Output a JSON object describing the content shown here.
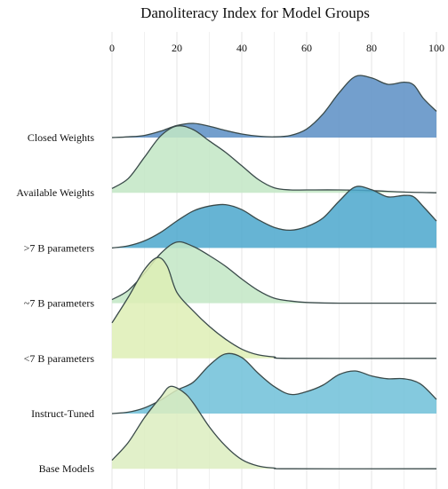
{
  "chart_data": {
    "type": "area",
    "subtype": "ridgeline-density",
    "title": "Danoliteracy Index for Model Groups",
    "xlim": [
      0,
      100
    ],
    "x_ticks": [
      0,
      20,
      40,
      60,
      80,
      100
    ],
    "x_axis_position": "top",
    "grid": true,
    "legend": "none",
    "rows": [
      {
        "label": "Closed Weights",
        "color": "#5b8ec4",
        "density": [
          [
            0,
            0.0
          ],
          [
            5,
            0.01
          ],
          [
            10,
            0.03
          ],
          [
            15,
            0.09
          ],
          [
            20,
            0.17
          ],
          [
            25,
            0.2
          ],
          [
            30,
            0.16
          ],
          [
            35,
            0.1
          ],
          [
            40,
            0.05
          ],
          [
            45,
            0.02
          ],
          [
            50,
            0.01
          ],
          [
            55,
            0.03
          ],
          [
            60,
            0.12
          ],
          [
            65,
            0.33
          ],
          [
            70,
            0.63
          ],
          [
            75,
            0.86
          ],
          [
            80,
            0.84
          ],
          [
            85,
            0.75
          ],
          [
            90,
            0.78
          ],
          [
            93,
            0.74
          ],
          [
            96,
            0.55
          ],
          [
            100,
            0.37
          ]
        ]
      },
      {
        "label": "Available Weights",
        "color": "#c2e6c4",
        "density": [
          [
            0,
            0.06
          ],
          [
            5,
            0.2
          ],
          [
            10,
            0.5
          ],
          [
            15,
            0.8
          ],
          [
            20,
            0.94
          ],
          [
            25,
            0.89
          ],
          [
            30,
            0.73
          ],
          [
            35,
            0.57
          ],
          [
            40,
            0.38
          ],
          [
            45,
            0.19
          ],
          [
            50,
            0.07
          ],
          [
            55,
            0.04
          ],
          [
            60,
            0.04
          ],
          [
            70,
            0.04
          ],
          [
            80,
            0.03
          ],
          [
            90,
            0.01
          ],
          [
            100,
            0.0
          ]
        ]
      },
      {
        "label": ">7 B parameters",
        "color": "#4ba7cd",
        "density": [
          [
            0,
            0.0
          ],
          [
            5,
            0.03
          ],
          [
            10,
            0.1
          ],
          [
            15,
            0.22
          ],
          [
            20,
            0.38
          ],
          [
            25,
            0.52
          ],
          [
            30,
            0.59
          ],
          [
            35,
            0.61
          ],
          [
            40,
            0.54
          ],
          [
            45,
            0.4
          ],
          [
            50,
            0.29
          ],
          [
            55,
            0.25
          ],
          [
            60,
            0.3
          ],
          [
            65,
            0.42
          ],
          [
            70,
            0.66
          ],
          [
            75,
            0.86
          ],
          [
            80,
            0.82
          ],
          [
            85,
            0.72
          ],
          [
            90,
            0.74
          ],
          [
            93,
            0.72
          ],
          [
            96,
            0.58
          ],
          [
            100,
            0.38
          ]
        ]
      },
      {
        "label": "~7 B parameters",
        "color": "#c2e6c4",
        "density": [
          [
            0,
            0.05
          ],
          [
            5,
            0.18
          ],
          [
            10,
            0.42
          ],
          [
            15,
            0.7
          ],
          [
            20,
            0.86
          ],
          [
            25,
            0.8
          ],
          [
            30,
            0.67
          ],
          [
            35,
            0.52
          ],
          [
            40,
            0.34
          ],
          [
            45,
            0.18
          ],
          [
            50,
            0.07
          ],
          [
            55,
            0.03
          ],
          [
            60,
            0.01
          ],
          [
            70,
            0.0
          ],
          [
            80,
            0.0
          ],
          [
            100,
            0.0
          ]
        ]
      },
      {
        "label": "<7 B parameters",
        "color": "#deefb5",
        "density": [
          [
            0,
            0.5
          ],
          [
            5,
            0.86
          ],
          [
            10,
            1.25
          ],
          [
            14,
            1.42
          ],
          [
            17,
            1.3
          ],
          [
            20,
            0.93
          ],
          [
            25,
            0.67
          ],
          [
            30,
            0.45
          ],
          [
            35,
            0.27
          ],
          [
            40,
            0.13
          ],
          [
            45,
            0.05
          ],
          [
            50,
            0.02
          ],
          [
            55,
            0.0
          ],
          [
            100,
            0.0
          ]
        ]
      },
      {
        "label": "Instruct-Tuned",
        "color": "#6fc0d8",
        "density": [
          [
            0,
            0.0
          ],
          [
            5,
            0.02
          ],
          [
            10,
            0.08
          ],
          [
            15,
            0.19
          ],
          [
            20,
            0.33
          ],
          [
            25,
            0.44
          ],
          [
            30,
            0.68
          ],
          [
            35,
            0.84
          ],
          [
            40,
            0.79
          ],
          [
            45,
            0.57
          ],
          [
            50,
            0.38
          ],
          [
            55,
            0.27
          ],
          [
            60,
            0.31
          ],
          [
            65,
            0.4
          ],
          [
            70,
            0.55
          ],
          [
            75,
            0.6
          ],
          [
            80,
            0.53
          ],
          [
            85,
            0.49
          ],
          [
            90,
            0.49
          ],
          [
            95,
            0.42
          ],
          [
            100,
            0.2
          ]
        ]
      },
      {
        "label": "Base Models",
        "color": "#dcedc0",
        "density": [
          [
            0,
            0.12
          ],
          [
            5,
            0.37
          ],
          [
            10,
            0.72
          ],
          [
            15,
            1.01
          ],
          [
            18,
            1.16
          ],
          [
            22,
            1.08
          ],
          [
            25,
            0.93
          ],
          [
            30,
            0.59
          ],
          [
            35,
            0.32
          ],
          [
            40,
            0.13
          ],
          [
            45,
            0.04
          ],
          [
            50,
            0.01
          ],
          [
            55,
            0.0
          ],
          [
            100,
            0.0
          ]
        ]
      }
    ]
  }
}
